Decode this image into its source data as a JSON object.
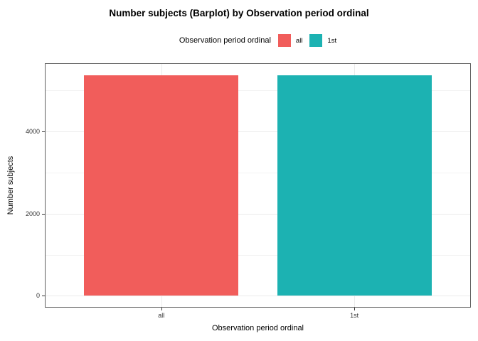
{
  "figure": {
    "title": "Number subjects (Barplot) by Observation period ordinal",
    "background_color": "#ffffff"
  },
  "legend": {
    "title": "Observation period ordinal",
    "position": "top",
    "entries": [
      {
        "label": "all",
        "color": "#f15d5b"
      },
      {
        "label": "1st",
        "color": "#1cb2b2"
      }
    ]
  },
  "axes": {
    "x_title": "Observation period ordinal",
    "y_title": "Number subjects"
  },
  "chart_data": {
    "type": "bar",
    "title": "Number subjects (Barplot) by Observation period ordinal",
    "xlabel": "Observation period ordinal",
    "ylabel": "Number subjects",
    "categories": [
      "all",
      "1st"
    ],
    "values": [
      5370,
      5370
    ],
    "bar_colors": [
      "#f15d5b",
      "#1cb2b2"
    ],
    "legend_title": "Observation period ordinal",
    "legend_labels": [
      "all",
      "1st"
    ],
    "legend_position": "top",
    "y_major_ticks": [
      0,
      2000,
      4000
    ],
    "y_minor_gridlines": [
      1000,
      3000,
      5000
    ],
    "ylim": [
      0,
      5640
    ],
    "grid": "horizontal major+minor, vertical at category centers",
    "panel_border_color": "#5f5f5f",
    "major_grid_color": "#ebebeb",
    "minor_grid_color": "#f3f3f3",
    "tick_color": "#333333"
  }
}
